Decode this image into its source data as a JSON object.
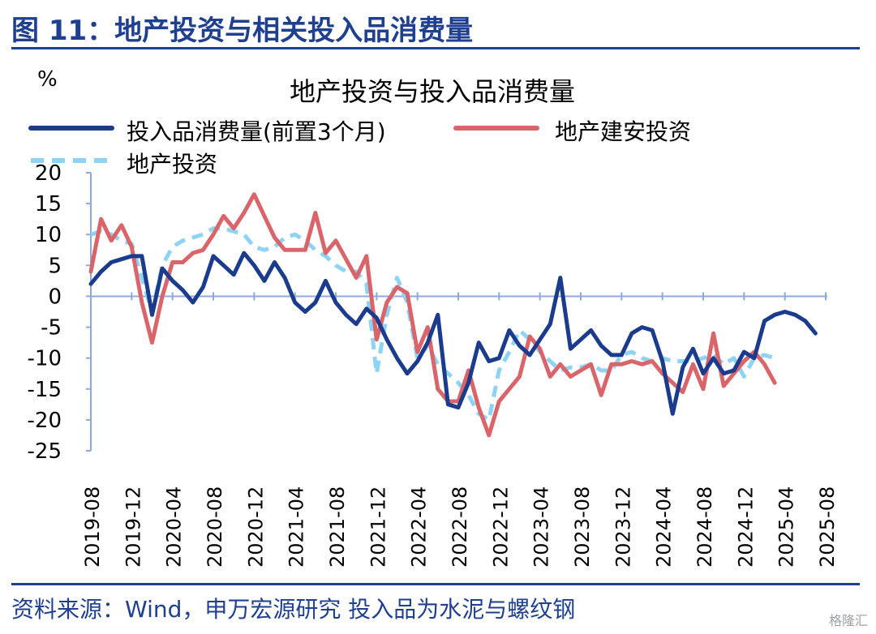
{
  "figure_title": "图 11：地产投资与相关投入品消费量",
  "source_note": "资料来源：Wind，申万宏源研究  投入品为水泥与螺纹钢",
  "watermark": "格隆汇",
  "chart_data": {
    "type": "line",
    "title": "地产投资与投入品消费量",
    "ylabel": "%",
    "ylim": [
      -25,
      20
    ],
    "yticks": [
      20,
      15,
      10,
      5,
      0,
      -5,
      -10,
      -15,
      -20,
      -25
    ],
    "ytick_labels": [
      "20",
      "15",
      "10",
      "5",
      "0",
      "-5",
      "-10",
      "-15",
      "-20",
      "-25"
    ],
    "x_start": "2019-08",
    "x_end": "2025-08",
    "xtick_labels": [
      "2019-08",
      "2019-12",
      "2020-04",
      "2020-08",
      "2020-12",
      "2021-04",
      "2021-08",
      "2021-12",
      "2022-04",
      "2022-08",
      "2022-12",
      "2023-04",
      "2023-08",
      "2023-12",
      "2024-04",
      "2024-08",
      "2024-12",
      "2025-04",
      "2025-08"
    ],
    "legend": [
      {
        "label": "投入品消费量(前置3个月)",
        "color": "#1b3b8c",
        "dash": "solid"
      },
      {
        "label": "地产建安投资",
        "color": "#d9646a",
        "dash": "solid"
      },
      {
        "label": "地产投资",
        "color": "#8fd3f4",
        "dash": "dashed"
      }
    ],
    "series": [
      {
        "name": "投入品消费量(前置3个月)",
        "color": "#1b3b8c",
        "dash": "solid",
        "values": [
          [
            "2019-08",
            2
          ],
          [
            "2019-09",
            4
          ],
          [
            "2019-10",
            5.5
          ],
          [
            "2019-11",
            6
          ],
          [
            "2019-12",
            6.5
          ],
          [
            "2020-01",
            6.5
          ],
          [
            "2020-02",
            -3
          ],
          [
            "2020-03",
            4.5
          ],
          [
            "2020-04",
            2.5
          ],
          [
            "2020-05",
            1
          ],
          [
            "2020-06",
            -1
          ],
          [
            "2020-07",
            1.5
          ],
          [
            "2020-08",
            6.5
          ],
          [
            "2020-09",
            5
          ],
          [
            "2020-10",
            3.5
          ],
          [
            "2020-11",
            7
          ],
          [
            "2020-12",
            5
          ],
          [
            "2021-01",
            2.5
          ],
          [
            "2021-02",
            5.5
          ],
          [
            "2021-03",
            3
          ],
          [
            "2021-04",
            -1
          ],
          [
            "2021-05",
            -2.5
          ],
          [
            "2021-06",
            -1
          ],
          [
            "2021-07",
            2.5
          ],
          [
            "2021-08",
            -1
          ],
          [
            "2021-09",
            -3
          ],
          [
            "2021-10",
            -4.5
          ],
          [
            "2021-11",
            -2
          ],
          [
            "2021-12",
            -3.5
          ],
          [
            "2022-01",
            -7
          ],
          [
            "2022-02",
            -10
          ],
          [
            "2022-03",
            -12.5
          ],
          [
            "2022-04",
            -10.5
          ],
          [
            "2022-05",
            -7.5
          ],
          [
            "2022-06",
            -3
          ],
          [
            "2022-07",
            -17.5
          ],
          [
            "2022-08",
            -18
          ],
          [
            "2022-09",
            -14
          ],
          [
            "2022-10",
            -7.5
          ],
          [
            "2022-11",
            -10.5
          ],
          [
            "2022-12",
            -10
          ],
          [
            "2023-01",
            -5.5
          ],
          [
            "2023-02",
            -8
          ],
          [
            "2023-03",
            -9.5
          ],
          [
            "2023-04",
            -7
          ],
          [
            "2023-05",
            -4.5
          ],
          [
            "2023-06",
            3
          ],
          [
            "2023-07",
            -8.5
          ],
          [
            "2023-08",
            -7
          ],
          [
            "2023-09",
            -5.5
          ],
          [
            "2023-10",
            -8
          ],
          [
            "2023-11",
            -9.5
          ],
          [
            "2023-12",
            -9.5
          ],
          [
            "2024-01",
            -6
          ],
          [
            "2024-02",
            -5
          ],
          [
            "2024-03",
            -5.5
          ],
          [
            "2024-04",
            -10.5
          ],
          [
            "2024-05",
            -19
          ],
          [
            "2024-06",
            -11.5
          ],
          [
            "2024-07",
            -8.5
          ],
          [
            "2024-08",
            -12.5
          ],
          [
            "2024-09",
            -10
          ],
          [
            "2024-10",
            -12.5
          ],
          [
            "2024-11",
            -12
          ],
          [
            "2024-12",
            -9
          ],
          [
            "2025-01",
            -10
          ],
          [
            "2025-02",
            -4
          ],
          [
            "2025-03",
            -3
          ],
          [
            "2025-04",
            -2.5
          ],
          [
            "2025-05",
            -3
          ],
          [
            "2025-06",
            -4
          ],
          [
            "2025-07",
            -6
          ]
        ]
      },
      {
        "name": "地产建安投资",
        "color": "#d9646a",
        "dash": "solid",
        "values": [
          [
            "2019-08",
            4
          ],
          [
            "2019-09",
            12.5
          ],
          [
            "2019-10",
            9
          ],
          [
            "2019-11",
            11.5
          ],
          [
            "2019-12",
            8
          ],
          [
            "2020-01",
            -1
          ],
          [
            "2020-02",
            -7.5
          ],
          [
            "2020-03",
            0
          ],
          [
            "2020-04",
            5.5
          ],
          [
            "2020-05",
            5.5
          ],
          [
            "2020-06",
            7
          ],
          [
            "2020-07",
            7.5
          ],
          [
            "2020-08",
            10
          ],
          [
            "2020-09",
            13
          ],
          [
            "2020-10",
            11
          ],
          [
            "2020-11",
            13.5
          ],
          [
            "2020-12",
            16.5
          ],
          [
            "2021-01",
            13
          ],
          [
            "2021-02",
            9.5
          ],
          [
            "2021-03",
            7.5
          ],
          [
            "2021-04",
            7.5
          ],
          [
            "2021-05",
            7.5
          ],
          [
            "2021-06",
            13.5
          ],
          [
            "2021-07",
            7
          ],
          [
            "2021-08",
            9
          ],
          [
            "2021-09",
            6
          ],
          [
            "2021-10",
            3
          ],
          [
            "2021-11",
            6.5
          ],
          [
            "2021-12",
            -7
          ],
          [
            "2022-01",
            -1
          ],
          [
            "2022-02",
            1.5
          ],
          [
            "2022-03",
            0.5
          ],
          [
            "2022-04",
            -9
          ],
          [
            "2022-05",
            -5
          ],
          [
            "2022-06",
            -15
          ],
          [
            "2022-07",
            -17
          ],
          [
            "2022-08",
            -17
          ],
          [
            "2022-09",
            -12
          ],
          [
            "2022-10",
            -18
          ],
          [
            "2022-11",
            -22.5
          ],
          [
            "2022-12",
            -17
          ],
          [
            "2023-01",
            -15
          ],
          [
            "2023-02",
            -13
          ],
          [
            "2023-03",
            -6.5
          ],
          [
            "2023-04",
            -8.5
          ],
          [
            "2023-05",
            -13
          ],
          [
            "2023-06",
            -11
          ],
          [
            "2023-07",
            -13
          ],
          [
            "2023-08",
            -12
          ],
          [
            "2023-09",
            -11
          ],
          [
            "2023-10",
            -16
          ],
          [
            "2023-11",
            -11
          ],
          [
            "2023-12",
            -11
          ],
          [
            "2024-01",
            -10.5
          ],
          [
            "2024-02",
            -11
          ],
          [
            "2024-03",
            -10.5
          ],
          [
            "2024-04",
            -12.5
          ],
          [
            "2024-05",
            -14
          ],
          [
            "2024-06",
            -15.5
          ],
          [
            "2024-07",
            -11
          ],
          [
            "2024-08",
            -15
          ],
          [
            "2024-09",
            -6
          ],
          [
            "2024-10",
            -14.5
          ],
          [
            "2024-11",
            -12.5
          ],
          [
            "2024-12",
            -10.5
          ],
          [
            "2025-01",
            -9
          ],
          [
            "2025-02",
            -11
          ],
          [
            "2025-03",
            -14
          ]
        ]
      },
      {
        "name": "地产投资",
        "color": "#8fd3f4",
        "dash": "dashed",
        "values": [
          [
            "2019-08",
            10
          ],
          [
            "2019-09",
            10.5
          ],
          [
            "2019-10",
            10
          ],
          [
            "2019-11",
            9
          ],
          [
            "2019-12",
            8.5
          ],
          [
            "2020-01",
            3
          ],
          [
            "2020-02",
            -2.5
          ],
          [
            "2020-03",
            5
          ],
          [
            "2020-04",
            8
          ],
          [
            "2020-05",
            9
          ],
          [
            "2020-06",
            9.5
          ],
          [
            "2020-07",
            10
          ],
          [
            "2020-08",
            11
          ],
          [
            "2020-09",
            11
          ],
          [
            "2020-10",
            10.5
          ],
          [
            "2020-11",
            10
          ],
          [
            "2020-12",
            8
          ],
          [
            "2021-01",
            7.5
          ],
          [
            "2021-02",
            8
          ],
          [
            "2021-03",
            9.5
          ],
          [
            "2021-04",
            10
          ],
          [
            "2021-05",
            9
          ],
          [
            "2021-06",
            7.5
          ],
          [
            "2021-07",
            6.5
          ],
          [
            "2021-08",
            5
          ],
          [
            "2021-09",
            4
          ],
          [
            "2021-10",
            4
          ],
          [
            "2021-11",
            2
          ],
          [
            "2021-12",
            -12.5
          ],
          [
            "2022-01",
            -3
          ],
          [
            "2022-02",
            3
          ],
          [
            "2022-03",
            -1
          ],
          [
            "2022-04",
            -10
          ],
          [
            "2022-05",
            -8
          ],
          [
            "2022-06",
            -11
          ],
          [
            "2022-07",
            -12.5
          ],
          [
            "2022-08",
            -14
          ],
          [
            "2022-09",
            -16
          ],
          [
            "2022-10",
            -19
          ],
          [
            "2022-11",
            -20
          ],
          [
            "2022-12",
            -12
          ],
          [
            "2023-01",
            -9
          ],
          [
            "2023-02",
            -5.5
          ],
          [
            "2023-03",
            -7
          ],
          [
            "2023-04",
            -9
          ],
          [
            "2023-05",
            -10.5
          ],
          [
            "2023-06",
            -12
          ],
          [
            "2023-07",
            -11.5
          ],
          [
            "2023-08",
            -11.5
          ],
          [
            "2023-09",
            -11
          ],
          [
            "2023-10",
            -12
          ],
          [
            "2023-11",
            -12
          ],
          [
            "2023-12",
            -9.5
          ],
          [
            "2024-01",
            -9
          ],
          [
            "2024-02",
            -10
          ],
          [
            "2024-03",
            -10.5
          ],
          [
            "2024-04",
            -10
          ],
          [
            "2024-05",
            -10.5
          ],
          [
            "2024-06",
            -10.5
          ],
          [
            "2024-07",
            -10.5
          ],
          [
            "2024-08",
            -10
          ],
          [
            "2024-09",
            -9.5
          ],
          [
            "2024-10",
            -11
          ],
          [
            "2024-11",
            -10
          ],
          [
            "2024-12",
            -13
          ],
          [
            "2025-01",
            -10
          ],
          [
            "2025-02",
            -9.5
          ],
          [
            "2025-03",
            -10
          ]
        ]
      }
    ]
  }
}
